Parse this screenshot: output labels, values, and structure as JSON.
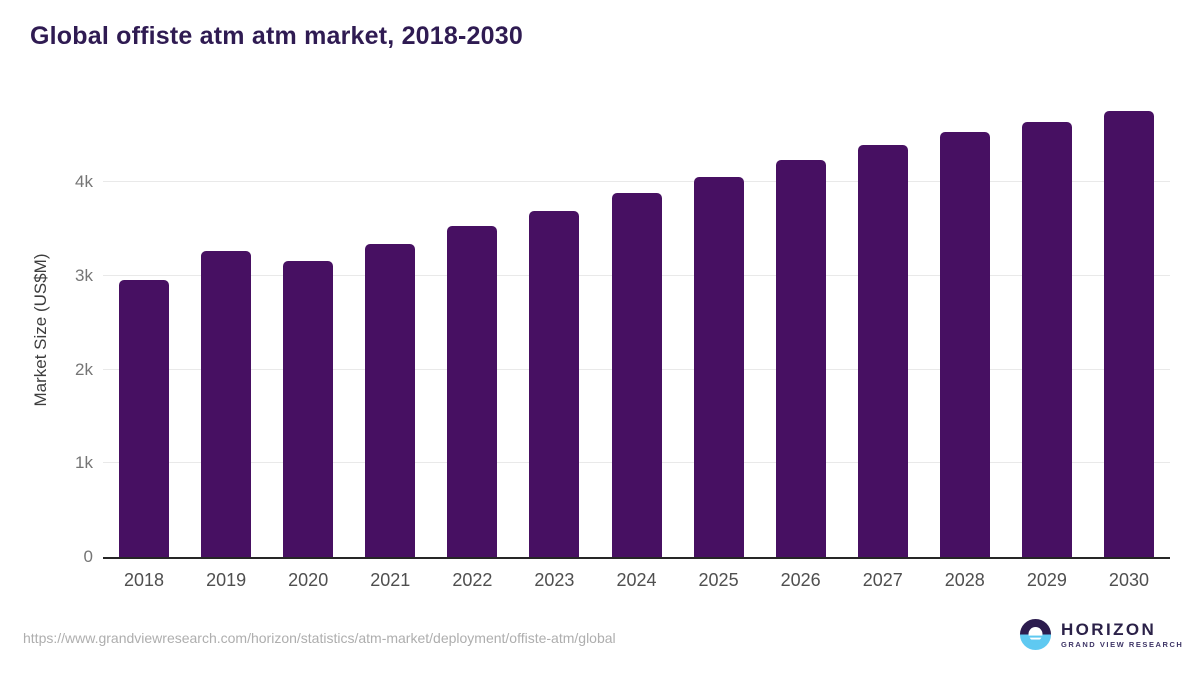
{
  "title": "Global offiste atm atm market, 2018-2030",
  "source_url": "https://www.grandviewresearch.com/horizon/statistics/atm-market/deployment/offiste-atm/global",
  "logo": {
    "name": "HORIZON",
    "subtitle": "GRAND VIEW RESEARCH",
    "circle_top_color": "#2c1c4e",
    "circle_bottom_color": "#5fc9f1"
  },
  "chart_data": {
    "type": "bar",
    "title": "Global offiste atm atm market, 2018-2030",
    "categories": [
      "2018",
      "2019",
      "2020",
      "2021",
      "2022",
      "2023",
      "2024",
      "2025",
      "2026",
      "2027",
      "2028",
      "2029",
      "2030"
    ],
    "values": [
      2950,
      3260,
      3155,
      3335,
      3530,
      3690,
      3880,
      4050,
      4230,
      4400,
      4530,
      4640,
      4760
    ],
    "xlabel": "",
    "ylabel": "Market Size (US$M)",
    "ylim": [
      0,
      4875
    ],
    "yticks": [
      {
        "value": 0,
        "label": "0"
      },
      {
        "value": 1000,
        "label": "1k"
      },
      {
        "value": 2000,
        "label": "2k"
      },
      {
        "value": 3000,
        "label": "3k"
      },
      {
        "value": 4000,
        "label": "4k"
      }
    ],
    "grid": "horizontal",
    "legend": "none",
    "bar_color": "#471062",
    "gridline_color": "#e9e9e9",
    "axis_line_color": "#262626",
    "title_color": "#2f1b52",
    "tick_color": "#757575",
    "x_tick_color": "#4f4f4f"
  }
}
